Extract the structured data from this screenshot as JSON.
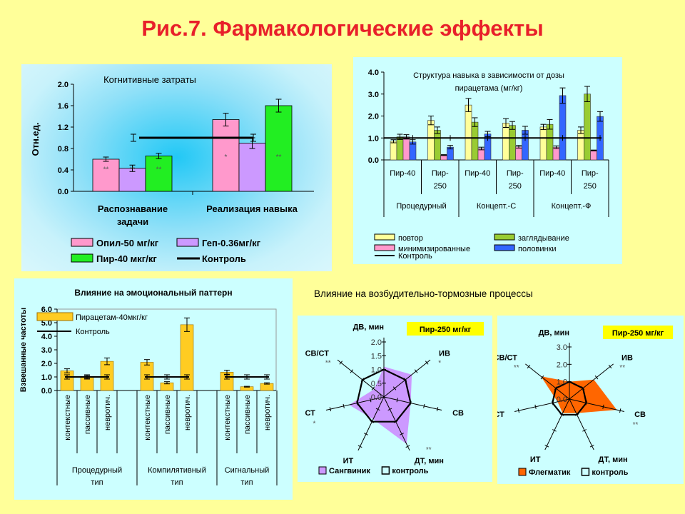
{
  "title": "Рис.7. Фармакологические эффекты",
  "subtitle": "Влияние на возбудительно-тормозные процессы",
  "chart_data": [
    {
      "type": "bar",
      "title": "Когнитивные затраты",
      "ylabel": "Отн.ед.",
      "ylim": [
        0,
        2.0
      ],
      "yticks": [
        "0.0",
        "0.4",
        "0.8",
        "1.2",
        "1.6",
        "2.0"
      ],
      "categories": [
        [
          "Распознавание",
          "задачи"
        ],
        [
          "Реализация навыка"
        ]
      ],
      "series": [
        {
          "name": "Опил-50 мг/кг",
          "color": "#ff99cc",
          "values": [
            0.6,
            1.34
          ],
          "errors": [
            0.04,
            0.12
          ],
          "stars": [
            "**",
            "*"
          ]
        },
        {
          "name": "Геп-0.36мг/кг",
          "color": "#cc99ff",
          "values": [
            0.43,
            0.9
          ],
          "errors": [
            0.06,
            0.1
          ],
          "stars": [
            "**",
            ""
          ]
        },
        {
          "name": "Пир-40 мкг/кг",
          "color": "#22ee22",
          "values": [
            0.66,
            1.6
          ],
          "errors": [
            0.05,
            0.12
          ],
          "stars": [
            "**",
            "**"
          ]
        }
      ],
      "control": {
        "name": "Контроль",
        "value": 1.0,
        "error": 0.07
      }
    },
    {
      "type": "bar",
      "title": [
        "Структура навыка в зависимости от дозы",
        "пирацетама (мг/кг)"
      ],
      "ylim": [
        0,
        4.0
      ],
      "yticks": [
        "0.0",
        "1.0",
        "2.0",
        "3.0",
        "4.0"
      ],
      "categories": [
        [
          "Пир-40"
        ],
        [
          "Пир-",
          "250"
        ],
        [
          "Пир-40"
        ],
        [
          "Пир-",
          "250"
        ],
        [
          "Пир-40"
        ],
        [
          "Пир-",
          "250"
        ]
      ],
      "groups": [
        "Процедурный",
        "Концепт.-С",
        "Концепт.-Ф"
      ],
      "series": [
        {
          "name": "повтор",
          "color": "#ffff99",
          "values": [
            0.85,
            1.8,
            2.5,
            1.68,
            1.5,
            1.35
          ],
          "errors": [
            0.07,
            0.2,
            0.3,
            0.2,
            0.12,
            0.15
          ]
        },
        {
          "name": "заглядывание",
          "color": "#99cc33",
          "values": [
            1.05,
            1.35,
            1.72,
            1.57,
            1.62,
            3.0
          ],
          "errors": [
            0.12,
            0.15,
            0.2,
            0.18,
            0.22,
            0.35
          ]
        },
        {
          "name": "минимизированные",
          "color": "#ff99cc",
          "values": [
            1.05,
            0.22,
            0.52,
            0.6,
            0.58,
            0.43
          ],
          "errors": [
            0.1,
            0.02,
            0.06,
            0.06,
            0.06,
            0.02
          ]
        },
        {
          "name": "половинки",
          "color": "#3366ff",
          "values": [
            0.82,
            0.58,
            1.18,
            1.35,
            2.93,
            1.98
          ],
          "errors": [
            0.1,
            0.08,
            0.12,
            0.18,
            0.35,
            0.22
          ]
        }
      ],
      "control": {
        "name": "Контроль",
        "value": 1.0,
        "error": 0.1
      }
    },
    {
      "type": "bar",
      "title": "Влияние на  эмоциональный паттерн",
      "ylabel": "Взвешанные частоты",
      "ylim": [
        0,
        6.0
      ],
      "yticks": [
        "0.0",
        "1.0",
        "2.0",
        "3.0",
        "4.0",
        "5.0",
        "6.0"
      ],
      "categories": [
        "контекстные",
        "пассивные",
        "невротич.",
        "контекстные",
        "пассивные",
        "невротич.",
        "контекстные",
        "пассивные",
        "невротич."
      ],
      "groups": [
        [
          "Процедурный",
          "тип"
        ],
        [
          "Компилятивный",
          "тип"
        ],
        [
          "Сигнальный",
          "тип"
        ]
      ],
      "series": [
        {
          "name": "Пирацетам-40мкг/кг",
          "color": "#ffcc22",
          "values": [
            1.45,
            1.0,
            2.15,
            2.08,
            0.57,
            4.85,
            1.35,
            0.28,
            0.52
          ],
          "errors": [
            0.15,
            0.1,
            0.25,
            0.2,
            0.08,
            0.5,
            0.15,
            0.03,
            0.05
          ]
        }
      ],
      "control": {
        "name": "Контроль",
        "value": 1.0,
        "error": 0.12
      }
    },
    {
      "type": "radar",
      "badge": "Пир-250 мг/кг",
      "axes": [
        "ДВ, мин",
        "ИВ",
        "СВ",
        "ДТ, мин",
        "ИТ",
        "СТ",
        "СВ/СТ"
      ],
      "rlim": [
        0,
        2.0
      ],
      "rticks": [
        "0.0",
        "0.5",
        "1.0",
        "1.5",
        "2.0"
      ],
      "series": [
        {
          "name": "Сангвиник",
          "color": "#cc99ff",
          "values": [
            1.1,
            1.3,
            1.0,
            1.9,
            0.9,
            1.3,
            0.45
          ]
        },
        {
          "name": "контроль",
          "color": "#000000",
          "values": [
            1.0,
            1.0,
            1.0,
            1.0,
            1.0,
            1.0,
            1.0
          ]
        }
      ],
      "stars": [
        "",
        "*",
        "",
        "**",
        "",
        "*",
        "**"
      ]
    },
    {
      "type": "radar",
      "badge": "Пир-250 мг/кг",
      "axes": [
        "ДВ, мин",
        "ИВ",
        "СВ",
        "ДТ, мин",
        "ИТ",
        "СТ",
        "СВ/СТ"
      ],
      "rlim": [
        0,
        3.0
      ],
      "rticks": [
        "0.0",
        "1.0",
        "2.0",
        "3.0"
      ],
      "series": [
        {
          "name": "Флегматик",
          "color": "#ff6600",
          "values": [
            1.0,
            1.8,
            2.8,
            0.9,
            0.9,
            0.7,
            2.1
          ]
        },
        {
          "name": "контроль",
          "color": "#000000",
          "values": [
            1.0,
            1.0,
            1.0,
            1.0,
            1.0,
            1.0,
            1.0
          ]
        }
      ],
      "stars": [
        "",
        "**",
        "**",
        "",
        "",
        "",
        "**"
      ]
    }
  ]
}
